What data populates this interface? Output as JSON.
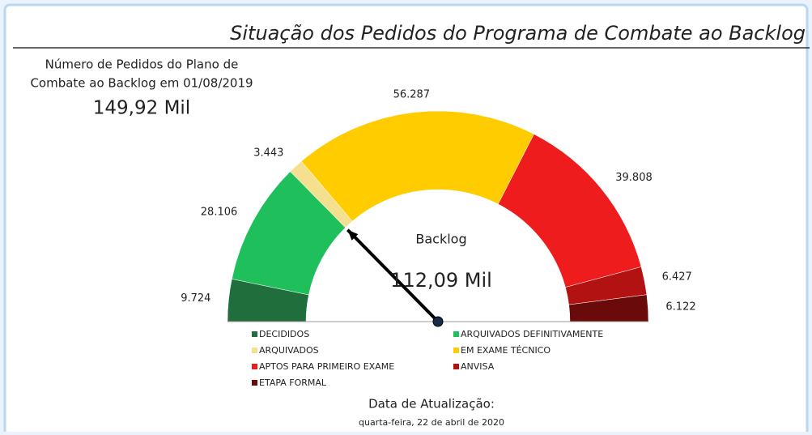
{
  "header": {
    "title": "Situação dos Pedidos do Programa de Combate ao Backlog"
  },
  "kpi": {
    "label_lines": [
      "Número de Pedidos do Plano de",
      "Combate ao Backlog em 01/08/2019"
    ],
    "value": "149,92 Mil"
  },
  "chart_data": {
    "type": "gauge",
    "categories": [
      "DECIDIDOS",
      "ARQUIVADOS DEFINITIVAMENTE",
      "ARQUIVADOS",
      "EM EXAME TÉCNICO",
      "APTOS PARA PRIMEIRO EXAME",
      "ANVISA",
      "ETAPA FORMAL"
    ],
    "values": [
      9724,
      28106,
      3443,
      56287,
      39808,
      6427,
      6122
    ],
    "value_labels": [
      "9.724",
      "28.106",
      "3.443",
      "56.287",
      "39.808",
      "6.427",
      "6.122"
    ],
    "colors": [
      "#1f6e3b",
      "#1fbf5c",
      "#f4e08e",
      "#ffcc00",
      "#ee1c1c",
      "#b31212",
      "#6b0a0a"
    ],
    "center_label": "Backlog",
    "center_value": "112,09 Mil"
  },
  "footer": {
    "label": "Data de Atualização:",
    "date": "quarta-feira, 22 de abril de 2020"
  }
}
